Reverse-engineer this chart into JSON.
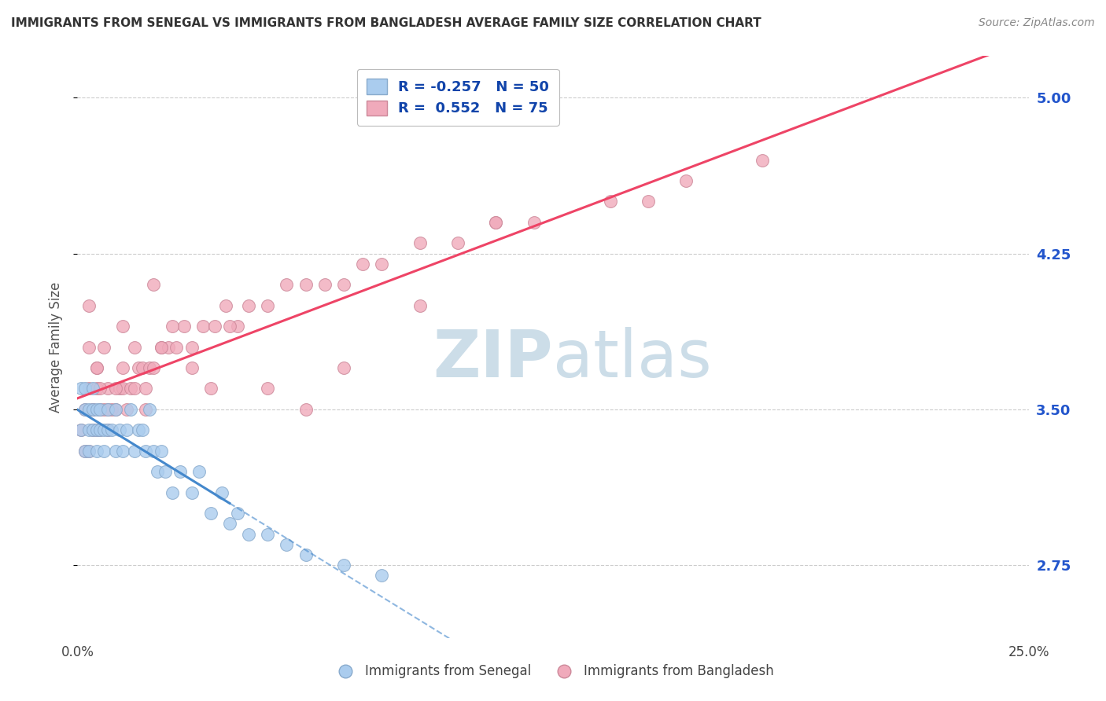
{
  "title": "IMMIGRANTS FROM SENEGAL VS IMMIGRANTS FROM BANGLADESH AVERAGE FAMILY SIZE CORRELATION CHART",
  "source": "Source: ZipAtlas.com",
  "ylabel": "Average Family Size",
  "xlim": [
    0.0,
    0.25
  ],
  "ylim": [
    2.4,
    5.2
  ],
  "yticks": [
    2.75,
    3.5,
    4.25,
    5.0
  ],
  "xticks": [
    0.0,
    0.05,
    0.1,
    0.15,
    0.2,
    0.25
  ],
  "xticklabels": [
    "0.0%",
    "",
    "",
    "",
    "",
    "25.0%"
  ],
  "yticklabels_right": [
    "2.75",
    "3.50",
    "4.25",
    "5.00"
  ],
  "background_color": "#ffffff",
  "grid_color": "#cccccc",
  "senegal_color": "#aaccee",
  "senegal_edge": "#88aacc",
  "bangladesh_color": "#f0aabb",
  "bangladesh_edge": "#cc8899",
  "senegal_R": -0.257,
  "senegal_N": 50,
  "bangladesh_R": 0.552,
  "bangladesh_N": 75,
  "senegal_line_color": "#4488cc",
  "bangladesh_line_color": "#ee4466",
  "watermark_color": "#ccdde8",
  "legend_R_color": "#1144aa",
  "senegal_x": [
    0.001,
    0.001,
    0.002,
    0.002,
    0.002,
    0.003,
    0.003,
    0.003,
    0.004,
    0.004,
    0.004,
    0.005,
    0.005,
    0.005,
    0.006,
    0.006,
    0.007,
    0.007,
    0.008,
    0.008,
    0.009,
    0.01,
    0.01,
    0.011,
    0.012,
    0.013,
    0.014,
    0.015,
    0.016,
    0.017,
    0.018,
    0.019,
    0.02,
    0.021,
    0.022,
    0.023,
    0.025,
    0.027,
    0.03,
    0.032,
    0.035,
    0.038,
    0.04,
    0.042,
    0.045,
    0.05,
    0.055,
    0.06,
    0.07,
    0.08
  ],
  "senegal_y": [
    3.4,
    3.6,
    3.5,
    3.3,
    3.6,
    3.4,
    3.5,
    3.3,
    3.5,
    3.4,
    3.6,
    3.4,
    3.5,
    3.3,
    3.4,
    3.5,
    3.4,
    3.3,
    3.5,
    3.4,
    3.4,
    3.3,
    3.5,
    3.4,
    3.3,
    3.4,
    3.5,
    3.3,
    3.4,
    3.4,
    3.3,
    3.5,
    3.3,
    3.2,
    3.3,
    3.2,
    3.1,
    3.2,
    3.1,
    3.2,
    3.0,
    3.1,
    2.95,
    3.0,
    2.9,
    2.9,
    2.85,
    2.8,
    2.75,
    2.7
  ],
  "bangladesh_x": [
    0.001,
    0.002,
    0.002,
    0.003,
    0.003,
    0.004,
    0.004,
    0.005,
    0.005,
    0.006,
    0.006,
    0.007,
    0.008,
    0.008,
    0.009,
    0.01,
    0.011,
    0.012,
    0.013,
    0.014,
    0.015,
    0.016,
    0.017,
    0.018,
    0.019,
    0.02,
    0.022,
    0.024,
    0.026,
    0.028,
    0.03,
    0.033,
    0.036,
    0.039,
    0.042,
    0.045,
    0.05,
    0.055,
    0.06,
    0.065,
    0.07,
    0.075,
    0.08,
    0.09,
    0.1,
    0.11,
    0.12,
    0.14,
    0.16,
    0.18,
    0.003,
    0.004,
    0.005,
    0.006,
    0.008,
    0.01,
    0.012,
    0.015,
    0.018,
    0.022,
    0.025,
    0.03,
    0.035,
    0.04,
    0.05,
    0.06,
    0.07,
    0.09,
    0.11,
    0.15,
    0.003,
    0.005,
    0.007,
    0.012,
    0.02
  ],
  "bangladesh_y": [
    3.4,
    3.3,
    3.5,
    3.6,
    3.3,
    3.4,
    3.5,
    3.4,
    3.6,
    3.5,
    3.4,
    3.5,
    3.6,
    3.4,
    3.5,
    3.5,
    3.6,
    3.6,
    3.5,
    3.6,
    3.6,
    3.7,
    3.7,
    3.6,
    3.7,
    3.7,
    3.8,
    3.8,
    3.8,
    3.9,
    3.8,
    3.9,
    3.9,
    4.0,
    3.9,
    4.0,
    4.0,
    4.1,
    4.1,
    4.1,
    4.1,
    4.2,
    4.2,
    4.3,
    4.3,
    4.4,
    4.4,
    4.5,
    4.6,
    4.7,
    3.8,
    3.5,
    3.7,
    3.6,
    3.5,
    3.6,
    3.7,
    3.8,
    3.5,
    3.8,
    3.9,
    3.7,
    3.6,
    3.9,
    3.6,
    3.5,
    3.7,
    4.0,
    4.4,
    4.5,
    4.0,
    3.7,
    3.8,
    3.9,
    4.1
  ]
}
